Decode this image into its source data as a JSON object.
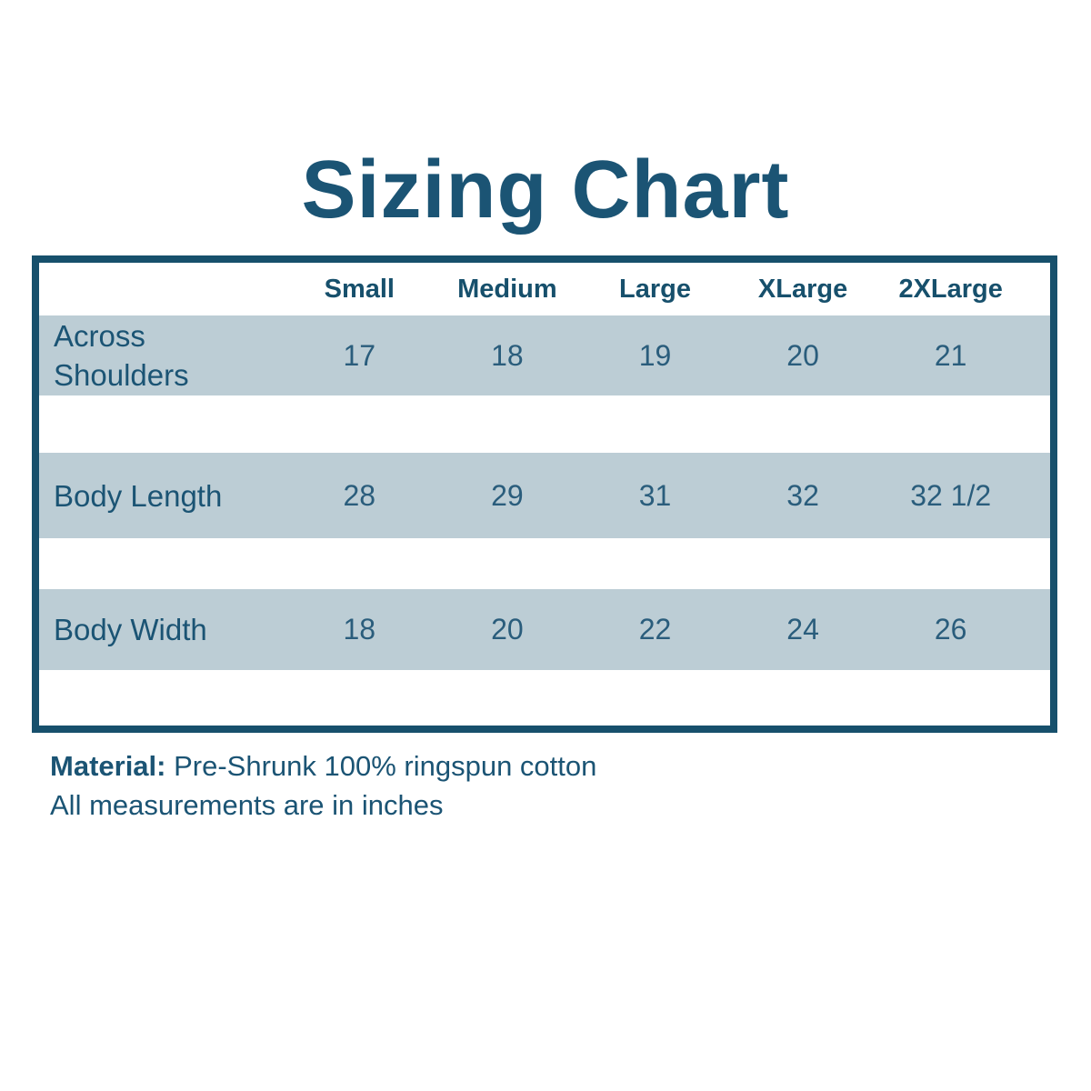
{
  "title": "Sizing Chart",
  "chart_data": {
    "type": "table",
    "title": "Sizing Chart",
    "size_columns": [
      "Small",
      "Medium",
      "Large",
      "XLarge",
      "2XLarge"
    ],
    "rows": [
      {
        "label": "Across Shoulders",
        "values": [
          "17",
          "18",
          "19",
          "20",
          "21"
        ]
      },
      {
        "label": "Body Length",
        "values": [
          "28",
          "29",
          "31",
          "32",
          "32 1/2"
        ]
      },
      {
        "label": "Body Width",
        "values": [
          "18",
          "20",
          "22",
          "24",
          "26"
        ]
      }
    ],
    "notes": {
      "material_label": "Material:",
      "material_text": " Pre-Shrunk 100% ringspun cotton",
      "units_note": "All measurements are in inches"
    }
  },
  "colors": {
    "text_dark": "#1b5474",
    "numbers": "#2a5d7c",
    "table_border": "#17506c",
    "row_background": "#bccdd5",
    "page_background": "#ffffff"
  }
}
